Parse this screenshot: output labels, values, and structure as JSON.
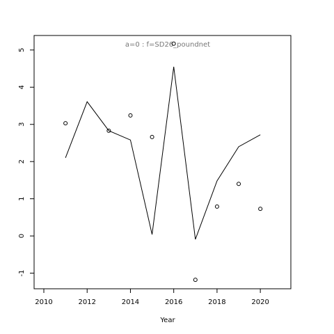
{
  "chart_data": {
    "type": "line",
    "title": "a=0  :  f=SD26_poundnet",
    "xlabel": "Year",
    "x": [
      2011,
      2012,
      2013,
      2014,
      2015,
      2016,
      2017,
      2018,
      2019,
      2020
    ],
    "series": [
      {
        "style": "line",
        "color": "#000000",
        "values": [
          2.1,
          3.61,
          2.83,
          2.58,
          0.04,
          4.55,
          -0.09,
          1.48,
          2.4,
          2.72
        ]
      },
      {
        "style": "points",
        "color": "#000000",
        "values": [
          3.03,
          null,
          2.83,
          3.24,
          2.66,
          5.17,
          -1.18,
          0.79,
          1.4,
          0.73
        ]
      }
    ],
    "xlim": [
      2009.55,
      2021.41
    ],
    "ylim": [
      -1.42,
      5.39
    ],
    "xticks": [
      2010,
      2012,
      2014,
      2016,
      2018,
      2020
    ],
    "yticks": [
      -1,
      0,
      1,
      2,
      3,
      4,
      5
    ],
    "grid": false
  }
}
